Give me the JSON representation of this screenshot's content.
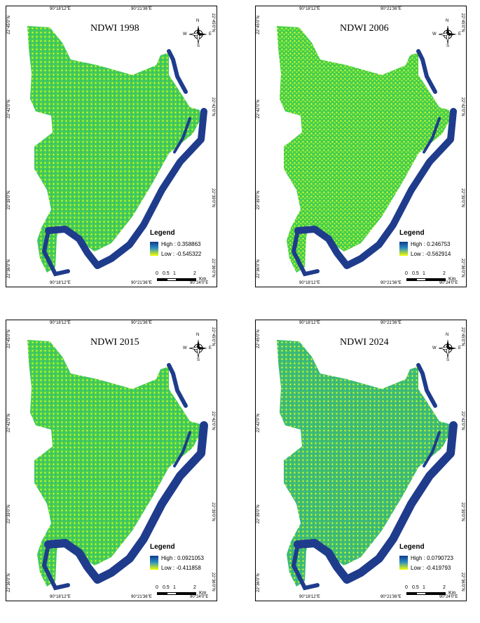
{
  "coords": {
    "top": [
      "90°18'12\"E",
      "90°21'36\"E"
    ],
    "bottom": [
      "90°18'12\"E",
      "90°21'36\"E",
      "90°24'0\"E"
    ],
    "left": [
      "22°45'0\"N",
      "22°42'0\"N",
      "22°39'0\"N",
      "22°36'0\"N"
    ],
    "right": [
      "22°45'0\"N",
      "22°42'0\"N",
      "22°39'0\"N",
      "22°36'0\"N"
    ]
  },
  "compass": {
    "n": "N",
    "s": "S",
    "e": "E",
    "w": "W"
  },
  "legend_title": "Legend",
  "scale": {
    "labels": [
      "0",
      "0.5",
      "1",
      "2"
    ],
    "unit": "Km"
  },
  "colors": {
    "water": "#1f3c8c",
    "land_high": "#2e9ad0",
    "land_mid": "#46d04a",
    "land_low": "#e9ff2a"
  },
  "panels": [
    {
      "title": "NDWI 1998",
      "high": "High : 0.358863",
      "low": "Low : -0.545322"
    },
    {
      "title": "NDWI 2006",
      "high": "High : 0.246753",
      "low": "Low : -0.562914"
    },
    {
      "title": "NDWI 2015",
      "high": "High : 0.0921053",
      "low": "Low : -0.411858"
    },
    {
      "title": "NDWI 2024",
      "high": "High : 0.0790723",
      "low": "Low : -0.419793"
    }
  ]
}
